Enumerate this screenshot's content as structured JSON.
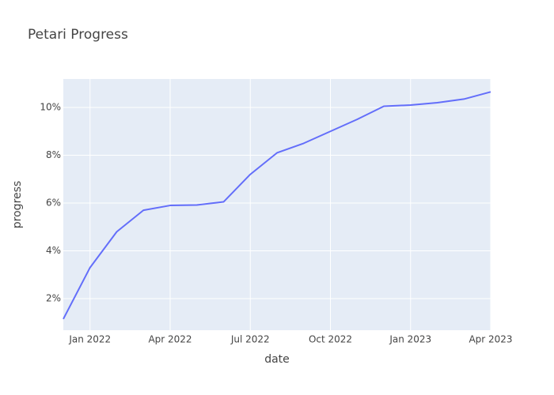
{
  "chart_data": {
    "type": "line",
    "title": "Petari Progress",
    "x_label": "date",
    "y_label": "progress",
    "x": [
      "2021-12",
      "2022-01",
      "2022-02",
      "2022-03",
      "2022-04",
      "2022-05",
      "2022-06",
      "2022-07",
      "2022-08",
      "2022-09",
      "2022-10",
      "2022-11",
      "2022-12",
      "2023-01",
      "2023-02",
      "2023-03",
      "2023-04"
    ],
    "series": [
      {
        "name": "progress",
        "color": "#636efa",
        "values": [
          1.15,
          3.3,
          4.8,
          5.7,
          5.9,
          5.92,
          6.05,
          7.2,
          8.1,
          8.5,
          9.0,
          9.5,
          10.05,
          10.1,
          10.2,
          10.35,
          10.65
        ]
      }
    ],
    "xlim": [
      "2021-12",
      "2023-04"
    ],
    "xticks": [
      {
        "value": "2022-01",
        "label": "Jan 2022"
      },
      {
        "value": "2022-04",
        "label": "Apr 2022"
      },
      {
        "value": "2022-07",
        "label": "Jul 2022"
      },
      {
        "value": "2022-10",
        "label": "Oct 2022"
      },
      {
        "value": "2023-01",
        "label": "Jan 2023"
      },
      {
        "value": "2023-04",
        "label": "Apr 2023"
      }
    ],
    "ylim": [
      0.68,
      11.19
    ],
    "yticks": [
      {
        "value": 2,
        "label": "2%"
      },
      {
        "value": 4,
        "label": "4%"
      },
      {
        "value": 6,
        "label": "6%"
      },
      {
        "value": 8,
        "label": "8%"
      },
      {
        "value": 10,
        "label": "10%"
      }
    ],
    "grid": true,
    "plot_background": "#e5ecf6"
  }
}
